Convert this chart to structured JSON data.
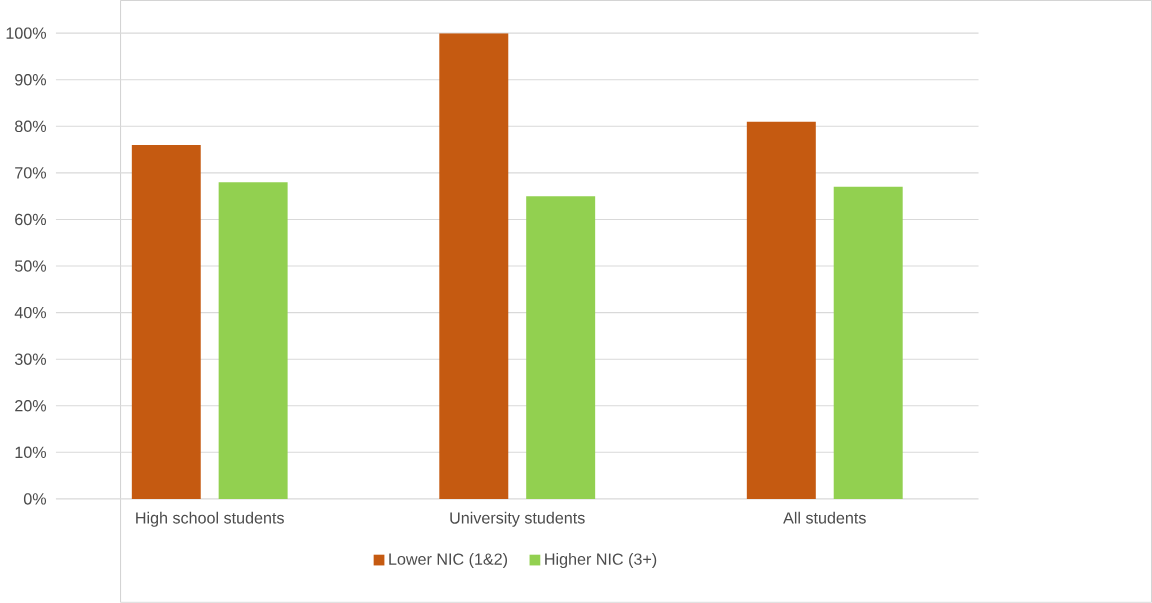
{
  "chart_data": {
    "type": "bar",
    "categories": [
      "High school students",
      "University students",
      "All students"
    ],
    "series": [
      {
        "name": "Lower NIC (1&2)",
        "color": "#c55a11",
        "values": [
          76,
          100,
          81
        ]
      },
      {
        "name": "Higher NIC (3+)",
        "color": "#92d050",
        "values": [
          68,
          65,
          67
        ]
      }
    ],
    "ylim": [
      0,
      100
    ],
    "yticks": [
      {
        "value": 0,
        "label": "0%"
      },
      {
        "value": 10,
        "label": "10%"
      },
      {
        "value": 20,
        "label": "20%"
      },
      {
        "value": 30,
        "label": "30%"
      },
      {
        "value": 40,
        "label": "40%"
      },
      {
        "value": 50,
        "label": "50%"
      },
      {
        "value": 60,
        "label": "60%"
      },
      {
        "value": 70,
        "label": "70%"
      },
      {
        "value": 80,
        "label": "80%"
      },
      {
        "value": 90,
        "label": "90%"
      },
      {
        "value": 100,
        "label": "100%"
      }
    ],
    "grid": "y",
    "legend": "bottom"
  }
}
